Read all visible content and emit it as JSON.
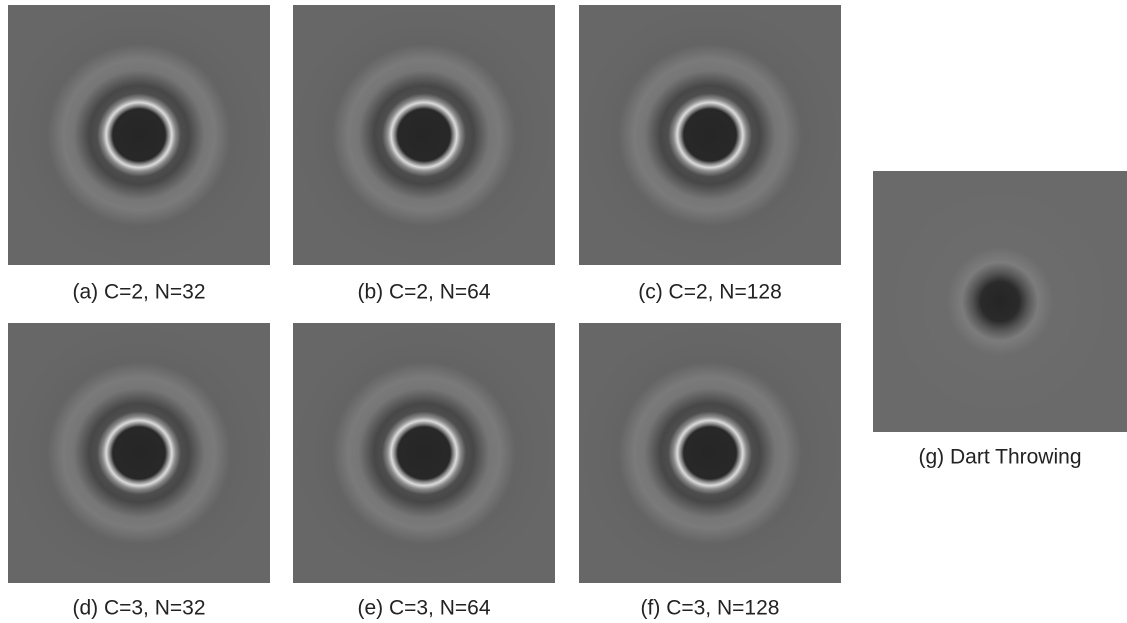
{
  "panels": [
    {
      "caption": "(a) C=2, N=32"
    },
    {
      "caption": "(b) C=2, N=64"
    },
    {
      "caption": "(c) C=2, N=128"
    },
    {
      "caption": "(d) C=3, N=32"
    },
    {
      "caption": "(e) C=3, N=64"
    },
    {
      "caption": "(f) C=3, N=128"
    },
    {
      "caption": "(g) Dart Throwing"
    }
  ]
}
